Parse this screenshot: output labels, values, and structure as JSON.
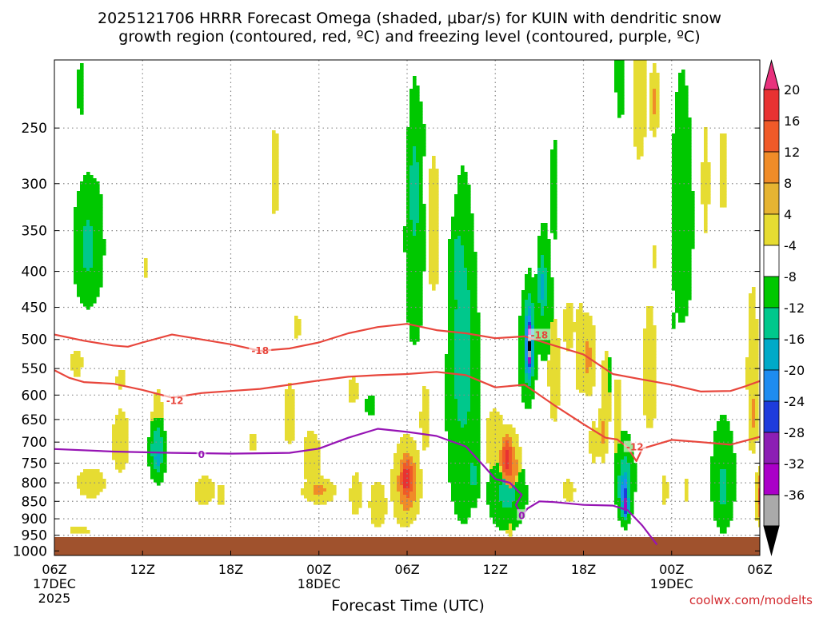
{
  "chart_data": {
    "type": "heatmap",
    "title_line1": "2025121706 HRRR Forecast Omega (shaded, μbar/s) for KUIN with dendritic snow",
    "title_line2": "growth region (contoured, red, ºC) and freezing level (contoured, purple, ºC)",
    "xlabel": "Forecast Time (UTC)",
    "credit": "coolwx.com/modelts",
    "x_ticks": [
      {
        "hour": 0,
        "label": "06Z",
        "sub1": "17DEC",
        "sub2": "2025"
      },
      {
        "hour": 6,
        "label": "12Z",
        "sub1": "",
        "sub2": ""
      },
      {
        "hour": 12,
        "label": "18Z",
        "sub1": "",
        "sub2": ""
      },
      {
        "hour": 18,
        "label": "00Z",
        "sub1": "18DEC",
        "sub2": ""
      },
      {
        "hour": 24,
        "label": "06Z",
        "sub1": "",
        "sub2": ""
      },
      {
        "hour": 30,
        "label": "12Z",
        "sub1": "",
        "sub2": ""
      },
      {
        "hour": 36,
        "label": "18Z",
        "sub1": "",
        "sub2": ""
      },
      {
        "hour": 42,
        "label": "00Z",
        "sub1": "19DEC",
        "sub2": ""
      },
      {
        "hour": 48,
        "label": "06Z",
        "sub1": "",
        "sub2": ""
      }
    ],
    "x_range": [
      0,
      48
    ],
    "y_ticks": [
      "250",
      "300",
      "350",
      "400",
      "450",
      "500",
      "550",
      "600",
      "650",
      "700",
      "750",
      "800",
      "850",
      "900",
      "950",
      "1000"
    ],
    "y_range": [
      200,
      1015
    ],
    "colorbar_labels": [
      "20",
      "16",
      "12",
      "8",
      "4",
      "-4",
      "-8",
      "-12",
      "-16",
      "-20",
      "-24",
      "-28",
      "-32",
      "-36"
    ],
    "colorbar_colors": [
      "#e8327d",
      "#e83232",
      "#f05a28",
      "#f08c28",
      "#e6b432",
      "#e6dc32",
      "#ffffff",
      "#00c800",
      "#00c88c",
      "#00aac8",
      "#1e8cf0",
      "#1e3cdc",
      "#8c1eb4",
      "#aa00c8",
      "#aaaaaa",
      "#000000"
    ],
    "ground_color": "#a0522d",
    "omega_blobs": [
      {
        "t": 2.3,
        "p": 370,
        "wt": 1.2,
        "wp": 90,
        "v": -9
      },
      {
        "t": 2.8,
        "p": 320,
        "wt": 0.8,
        "wp": 50,
        "v": -5
      },
      {
        "t": 1.8,
        "p": 220,
        "wt": 0.4,
        "wp": 30,
        "v": -6
      },
      {
        "t": 6.2,
        "p": 395,
        "wt": 0.4,
        "wp": 25,
        "v": 5
      },
      {
        "t": 7.0,
        "p": 650,
        "wt": 0.8,
        "wp": 130,
        "v": 5
      },
      {
        "t": 1.5,
        "p": 540,
        "wt": 0.8,
        "wp": 50,
        "v": 5
      },
      {
        "t": 2.5,
        "p": 800,
        "wt": 2.0,
        "wp": 80,
        "v": 5
      },
      {
        "t": 4.5,
        "p": 570,
        "wt": 0.6,
        "wp": 40,
        "v": 5
      },
      {
        "t": 4.5,
        "p": 700,
        "wt": 1.2,
        "wp": 150,
        "v": 5
      },
      {
        "t": 7.0,
        "p": 720,
        "wt": 0.6,
        "wp": 80,
        "v": -12
      },
      {
        "t": 7.0,
        "p": 740,
        "wt": 0.25,
        "wp": 30,
        "v": -17
      },
      {
        "t": 1.7,
        "p": 935,
        "wt": 1.3,
        "wp": 25,
        "v": 5
      },
      {
        "t": 10.2,
        "p": 820,
        "wt": 1.5,
        "wp": 80,
        "v": 5
      },
      {
        "t": 11.3,
        "p": 830,
        "wt": 0.6,
        "wp": 60,
        "v": 5
      },
      {
        "t": 15.0,
        "p": 290,
        "wt": 0.5,
        "wp": 90,
        "v": 5
      },
      {
        "t": 16.5,
        "p": 480,
        "wt": 0.5,
        "wp": 40,
        "v": 5
      },
      {
        "t": 16.0,
        "p": 640,
        "wt": 0.8,
        "wp": 140,
        "v": 5
      },
      {
        "t": 17.5,
        "p": 740,
        "wt": 1.3,
        "wp": 140,
        "v": 5
      },
      {
        "t": 18.0,
        "p": 820,
        "wt": 1.3,
        "wp": 40,
        "v": 9
      },
      {
        "t": 13.5,
        "p": 700,
        "wt": 0.6,
        "wp": 50,
        "v": 5
      },
      {
        "t": 20.3,
        "p": 590,
        "wt": 0.8,
        "wp": 50,
        "v": 5
      },
      {
        "t": 21.5,
        "p": 620,
        "wt": 0.6,
        "wp": 30,
        "v": -6
      },
      {
        "t": 20.5,
        "p": 830,
        "wt": 0.8,
        "wp": 120,
        "v": 5
      },
      {
        "t": 22.0,
        "p": 860,
        "wt": 1.2,
        "wp": 140,
        "v": 5
      },
      {
        "t": 23.8,
        "p": 810,
        "wt": 1.2,
        "wp": 150,
        "v": 7
      },
      {
        "t": 24.0,
        "p": 800,
        "wt": 0.9,
        "wp": 110,
        "v": 13
      },
      {
        "t": 24.0,
        "p": 790,
        "wt": 0.6,
        "wp": 70,
        "v": 19
      },
      {
        "t": 25.8,
        "p": 350,
        "wt": 0.9,
        "wp": 160,
        "v": 5
      },
      {
        "t": 24.5,
        "p": 360,
        "wt": 0.8,
        "wp": 180,
        "v": -8
      },
      {
        "t": 24.5,
        "p": 310,
        "wt": 0.45,
        "wp": 70,
        "v": -12
      },
      {
        "t": 24.8,
        "p": 260,
        "wt": 0.6,
        "wp": 50,
        "v": -6
      },
      {
        "t": 25.2,
        "p": 650,
        "wt": 0.6,
        "wp": 150,
        "v": 5
      },
      {
        "t": 27.8,
        "p": 600,
        "wt": 1.4,
        "wp": 380,
        "v": -8
      },
      {
        "t": 27.8,
        "p": 530,
        "wt": 0.9,
        "wp": 220,
        "v": -12
      },
      {
        "t": 27.5,
        "p": 400,
        "wt": 0.7,
        "wp": 80,
        "v": -11
      },
      {
        "t": 28.5,
        "p": 780,
        "wt": 0.5,
        "wp": 100,
        "v": -9
      },
      {
        "t": 30.0,
        "p": 700,
        "wt": 1.5,
        "wp": 150,
        "v": 5
      },
      {
        "t": 30.8,
        "p": 830,
        "wt": 1.5,
        "wp": 120,
        "v": -9
      },
      {
        "t": 31.0,
        "p": 750,
        "wt": 1.0,
        "wp": 120,
        "v": 7
      },
      {
        "t": 31.0,
        "p": 760,
        "wt": 0.7,
        "wp": 80,
        "v": 13
      },
      {
        "t": 30.8,
        "p": 740,
        "wt": 0.5,
        "wp": 60,
        "v": 19
      },
      {
        "t": 31.0,
        "p": 930,
        "wt": 0.3,
        "wp": 30,
        "v": 7
      },
      {
        "t": 32.2,
        "p": 520,
        "wt": 0.7,
        "wp": 120,
        "v": -9
      },
      {
        "t": 32.3,
        "p": 500,
        "wt": 0.5,
        "wp": 90,
        "v": -15
      },
      {
        "t": 32.3,
        "p": 510,
        "wt": 0.35,
        "wp": 70,
        "v": -25
      },
      {
        "t": 32.3,
        "p": 510,
        "wt": 0.2,
        "wp": 50,
        "v": -38
      },
      {
        "t": 33.3,
        "p": 440,
        "wt": 0.7,
        "wp": 120,
        "v": -8
      },
      {
        "t": 33.2,
        "p": 420,
        "wt": 0.4,
        "wp": 60,
        "v": -13
      },
      {
        "t": 34.0,
        "p": 560,
        "wt": 0.8,
        "wp": 200,
        "v": 5
      },
      {
        "t": 35.0,
        "p": 480,
        "wt": 0.8,
        "wp": 80,
        "v": 5
      },
      {
        "t": 35.0,
        "p": 820,
        "wt": 0.8,
        "wp": 60,
        "v": 5
      },
      {
        "t": 34.0,
        "p": 310,
        "wt": 0.4,
        "wp": 80,
        "v": -6
      },
      {
        "t": 35.8,
        "p": 520,
        "wt": 0.9,
        "wp": 160,
        "v": 5
      },
      {
        "t": 36.3,
        "p": 530,
        "wt": 0.6,
        "wp": 80,
        "v": 9
      },
      {
        "t": 36.7,
        "p": 700,
        "wt": 0.6,
        "wp": 100,
        "v": 5
      },
      {
        "t": 37.5,
        "p": 620,
        "wt": 0.6,
        "wp": 220,
        "v": 5
      },
      {
        "t": 37.3,
        "p": 680,
        "wt": 0.3,
        "wp": 80,
        "v": 9
      },
      {
        "t": 38.3,
        "p": 650,
        "wt": 0.6,
        "wp": 180,
        "v": 5
      },
      {
        "t": 37.7,
        "p": 560,
        "wt": 0.2,
        "wp": 60,
        "v": -6
      },
      {
        "t": 38.5,
        "p": 210,
        "wt": 0.5,
        "wp": 50,
        "v": -6
      },
      {
        "t": 39.8,
        "p": 220,
        "wt": 1.0,
        "wp": 120,
        "v": 5
      },
      {
        "t": 40.8,
        "p": 230,
        "wt": 0.4,
        "wp": 30,
        "v": 9
      },
      {
        "t": 38.8,
        "p": 790,
        "wt": 0.9,
        "wp": 140,
        "v": -8
      },
      {
        "t": 38.8,
        "p": 810,
        "wt": 0.6,
        "wp": 110,
        "v": -13
      },
      {
        "t": 38.8,
        "p": 830,
        "wt": 0.35,
        "wp": 80,
        "v": -21
      },
      {
        "t": 38.9,
        "p": 860,
        "wt": 0.2,
        "wp": 40,
        "v": -30
      },
      {
        "t": 40.5,
        "p": 560,
        "wt": 1.0,
        "wp": 240,
        "v": 5
      },
      {
        "t": 40.8,
        "p": 380,
        "wt": 0.3,
        "wp": 30,
        "v": 5
      },
      {
        "t": 42.2,
        "p": 470,
        "wt": 0.2,
        "wp": 20,
        "v": -6
      },
      {
        "t": 41.5,
        "p": 820,
        "wt": 0.5,
        "wp": 80,
        "v": 5
      },
      {
        "t": 42.7,
        "p": 340,
        "wt": 0.9,
        "wp": 160,
        "v": -8
      },
      {
        "t": 44.3,
        "p": 300,
        "wt": 0.5,
        "wp": 110,
        "v": 5
      },
      {
        "t": 45.5,
        "p": 290,
        "wt": 0.4,
        "wp": 90,
        "v": 5
      },
      {
        "t": 45.5,
        "p": 790,
        "wt": 1.0,
        "wp": 180,
        "v": -8
      },
      {
        "t": 45.5,
        "p": 810,
        "wt": 0.4,
        "wp": 80,
        "v": -12
      },
      {
        "t": 43.0,
        "p": 820,
        "wt": 0.4,
        "wp": 60,
        "v": 5
      },
      {
        "t": 47.5,
        "p": 560,
        "wt": 0.8,
        "wp": 300,
        "v": 5
      },
      {
        "t": 47.5,
        "p": 640,
        "wt": 0.4,
        "wp": 100,
        "v": 9
      },
      {
        "t": 48.0,
        "p": 840,
        "wt": 0.3,
        "wp": 80,
        "v": 13
      }
    ],
    "contours": [
      {
        "name": "isotherm-minus-18",
        "label": "-18",
        "color": "#e8463c",
        "label_at": [
          [
            14,
            519
          ],
          [
            33,
            493
          ]
        ],
        "points": [
          [
            0,
            492
          ],
          [
            2,
            502
          ],
          [
            4,
            510
          ],
          [
            5,
            512
          ],
          [
            6,
            505
          ],
          [
            8,
            492
          ],
          [
            10,
            500
          ],
          [
            12,
            508
          ],
          [
            14,
            519
          ],
          [
            16,
            515
          ],
          [
            18,
            505
          ],
          [
            20,
            490
          ],
          [
            22,
            480
          ],
          [
            24,
            475
          ],
          [
            26,
            485
          ],
          [
            28,
            490
          ],
          [
            30,
            498
          ],
          [
            32,
            495
          ],
          [
            34,
            510
          ],
          [
            36,
            525
          ],
          [
            38,
            560
          ],
          [
            40,
            570
          ],
          [
            42,
            580
          ],
          [
            44,
            593
          ],
          [
            46,
            592
          ],
          [
            47,
            583
          ],
          [
            48,
            573
          ]
        ]
      },
      {
        "name": "isotherm-minus-12",
        "label": "-12",
        "color": "#e8463c",
        "label_at": [
          [
            8.2,
            611
          ],
          [
            39.5,
            712
          ]
        ],
        "points": [
          [
            0,
            553
          ],
          [
            1,
            567
          ],
          [
            2,
            575
          ],
          [
            4,
            578
          ],
          [
            6,
            590
          ],
          [
            8,
            605
          ],
          [
            10,
            596
          ],
          [
            12,
            592
          ],
          [
            14,
            588
          ],
          [
            16,
            580
          ],
          [
            18,
            572
          ],
          [
            20,
            565
          ],
          [
            22,
            562
          ],
          [
            24,
            560
          ],
          [
            26,
            556
          ],
          [
            28,
            562
          ],
          [
            30,
            585
          ],
          [
            32,
            580
          ],
          [
            34,
            620
          ],
          [
            36,
            660
          ],
          [
            37.5,
            690
          ],
          [
            38.3,
            694
          ],
          [
            39,
            712
          ],
          [
            39.6,
            745
          ],
          [
            40,
            715
          ],
          [
            42,
            695
          ],
          [
            44,
            700
          ],
          [
            46,
            706
          ],
          [
            48,
            688
          ]
        ]
      },
      {
        "name": "freezing-level-0",
        "label": "0",
        "color": "#9614b4",
        "label_at": [
          [
            10,
            730
          ],
          [
            31.8,
            891
          ]
        ],
        "points": [
          [
            0,
            716
          ],
          [
            4,
            722
          ],
          [
            8,
            725
          ],
          [
            12,
            727
          ],
          [
            16,
            725
          ],
          [
            18,
            715
          ],
          [
            20,
            690
          ],
          [
            22,
            670
          ],
          [
            24,
            677
          ],
          [
            26,
            686
          ],
          [
            28,
            710
          ],
          [
            29.3,
            760
          ],
          [
            30,
            790
          ],
          [
            31,
            800
          ],
          [
            31.8,
            832
          ],
          [
            31.4,
            860
          ],
          [
            31.8,
            891
          ],
          [
            32.2,
            870
          ],
          [
            33,
            850
          ],
          [
            34,
            852
          ],
          [
            36,
            860
          ],
          [
            38,
            862
          ],
          [
            39,
            875
          ],
          [
            40,
            920
          ],
          [
            41,
            980
          ]
        ]
      }
    ]
  }
}
